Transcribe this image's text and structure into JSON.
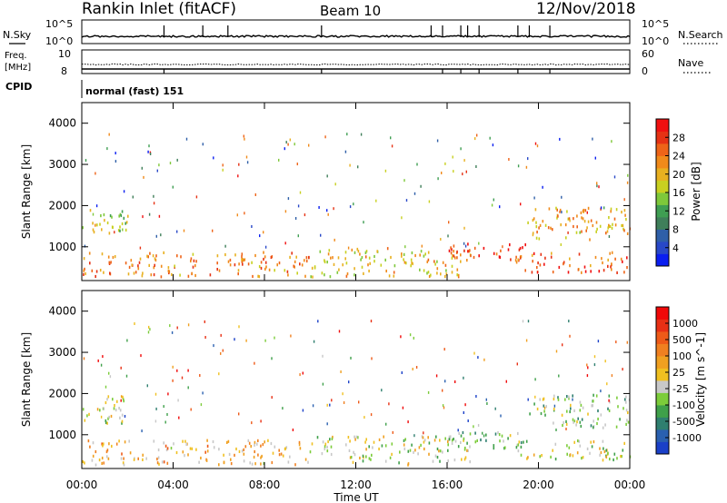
{
  "header": {
    "station": "Rankin Inlet (fitACF)",
    "beam": "Beam 10",
    "date": "12/Nov/2018"
  },
  "noise_panel": {
    "left_label": "N.Sky",
    "right_label": "N.Search",
    "left_ticks": [
      "10^5",
      "10^0"
    ],
    "right_ticks": [
      "10^5",
      "10^0"
    ]
  },
  "freq_panel": {
    "left_label_line1": "Freq.",
    "left_label_line2": "[MHz]",
    "right_label": "Nave",
    "left_ticks": [
      "10",
      "8"
    ],
    "right_ticks": [
      "60",
      "0"
    ]
  },
  "cpid": {
    "label": "CPID",
    "value": "normal (fast) 151"
  },
  "chart_data": [
    {
      "type": "heatmap",
      "title": "",
      "xlabel": "",
      "ylabel": "Slant Range [km]",
      "x_ticks": [
        "00:00",
        "04:00",
        "08:00",
        "12:00",
        "16:00",
        "20:00",
        "00:00"
      ],
      "xlim_hours": [
        0,
        24
      ],
      "ylim_km": [
        180,
        4500
      ],
      "y_ticks": [
        1000,
        2000,
        3000,
        4000
      ],
      "colorbar": {
        "label": "Power [dB]",
        "tick_labels": [
          "4",
          "8",
          "12",
          "16",
          "20",
          "24",
          "28"
        ],
        "range": [
          0,
          30
        ],
        "colors": [
          "#0a1ef0",
          "#2848c8",
          "#2f5fa8",
          "#3f7f5a",
          "#3f9e52",
          "#7ec83a",
          "#c8d020",
          "#e8b020",
          "#f08a1a",
          "#ee6418",
          "#e63214",
          "#f01010"
        ]
      },
      "features": [
        {
          "t_start": 0.0,
          "t_end": 2.0,
          "r_low": 1300,
          "r_high": 2000,
          "mean_value": 16
        },
        {
          "t_start": 0.0,
          "t_end": 10.0,
          "r_low": 300,
          "r_high": 900,
          "mean_value": 22
        },
        {
          "t_start": 10.0,
          "t_end": 17.0,
          "r_low": 300,
          "r_high": 1000,
          "mean_value": 18
        },
        {
          "t_start": 16.0,
          "t_end": 19.5,
          "r_low": 700,
          "r_high": 1100,
          "mean_value": 27
        },
        {
          "t_start": 19.5,
          "t_end": 24.0,
          "r_low": 1200,
          "r_high": 2000,
          "mean_value": 20
        },
        {
          "t_start": 19.0,
          "t_end": 24.0,
          "r_low": 400,
          "r_high": 900,
          "mean_value": 24
        }
      ]
    },
    {
      "type": "heatmap",
      "title": "",
      "xlabel": "Time UT",
      "ylabel": "Slant Range [km]",
      "x_ticks": [
        "00:00",
        "04:00",
        "08:00",
        "12:00",
        "16:00",
        "20:00",
        "00:00"
      ],
      "xlim_hours": [
        0,
        24
      ],
      "ylim_km": [
        180,
        4500
      ],
      "y_ticks": [
        1000,
        2000,
        3000,
        4000
      ],
      "colorbar": {
        "label": "Velocity [m s^-1]",
        "tick_labels": [
          "1000",
          "500",
          "100",
          "25",
          "-25",
          "-100",
          "-500",
          "-1000"
        ],
        "range": [
          -1200,
          1200
        ],
        "colors": [
          "#1a40c8",
          "#2a60b0",
          "#2f7f6f",
          "#3fa04a",
          "#7ccc3a",
          "#c8c8c8",
          "#f0c020",
          "#f0a020",
          "#f08020",
          "#ee5a18",
          "#e83014",
          "#f00808"
        ]
      },
      "features": [
        {
          "t_start": 0.0,
          "t_end": 2.0,
          "r_low": 1300,
          "r_high": 2000,
          "mean_value": -150
        },
        {
          "t_start": 0.0,
          "t_end": 10.0,
          "r_low": 300,
          "r_high": 900,
          "mean_value": 200
        },
        {
          "t_start": 10.0,
          "t_end": 17.0,
          "r_low": 300,
          "r_high": 1000,
          "mean_value": -100
        },
        {
          "t_start": 16.0,
          "t_end": 19.5,
          "r_low": 700,
          "r_high": 1100,
          "mean_value": -400
        },
        {
          "t_start": 19.5,
          "t_end": 24.0,
          "r_low": 1200,
          "r_high": 2000,
          "mean_value": -250
        },
        {
          "t_start": 19.0,
          "t_end": 24.0,
          "r_low": 400,
          "r_high": 900,
          "mean_value": -100
        }
      ]
    }
  ]
}
